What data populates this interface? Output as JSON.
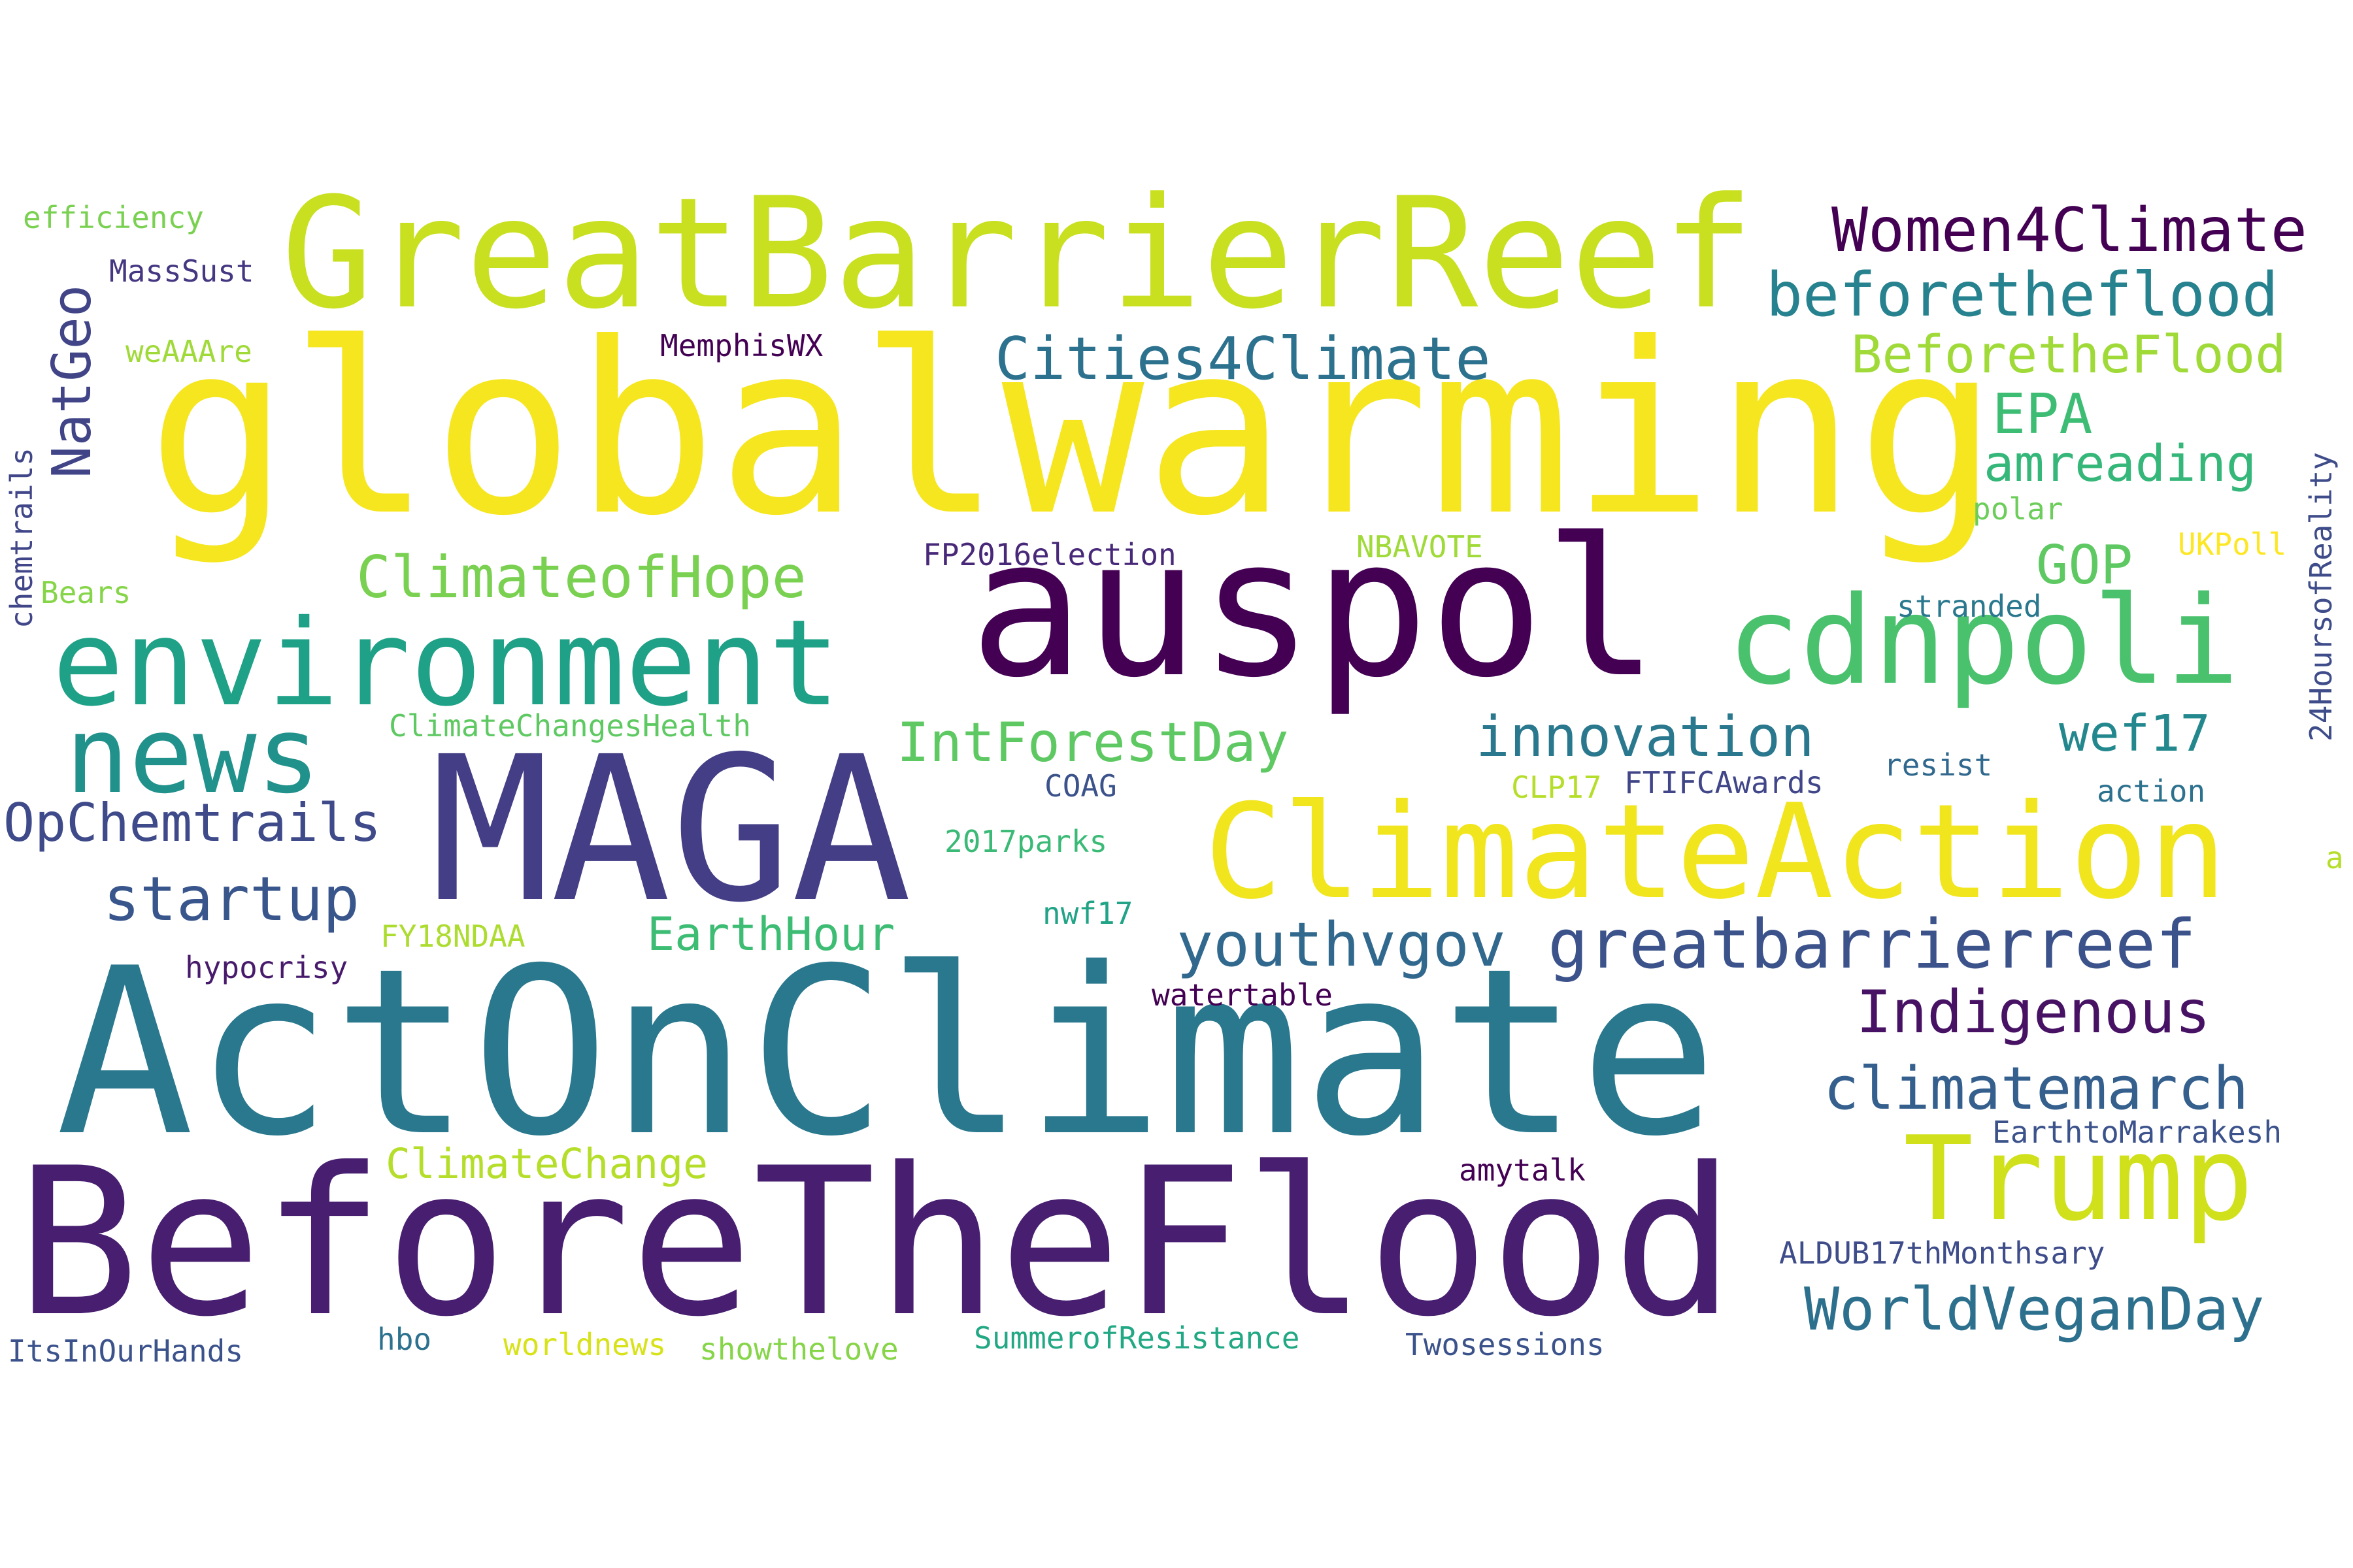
{
  "words": [
    {
      "text": "globalwarming",
      "color": "#f6e620"
    },
    {
      "text": "ActOnClimate",
      "color": "#2a788e"
    },
    {
      "text": "BeforeTheFlood",
      "color": "#481f70"
    },
    {
      "text": "MAGA",
      "color": "#433e85"
    },
    {
      "text": "auspol",
      "color": "#440154"
    },
    {
      "text": "GreatBarrierReef",
      "color": "#c8e020"
    },
    {
      "text": "ClimateAction",
      "color": "#f1e51d"
    },
    {
      "text": "environment",
      "color": "#1fa187"
    },
    {
      "text": "cdnpoli",
      "color": "#4ac16d"
    },
    {
      "text": "news",
      "color": "#21918c"
    },
    {
      "text": "Trump",
      "color": "#d0e11c"
    },
    {
      "text": "greatbarrierreef",
      "color": "#3b528b"
    },
    {
      "text": "Women4Climate",
      "color": "#440154"
    },
    {
      "text": "beforetheflood",
      "color": "#26828e"
    },
    {
      "text": "Cities4Climate",
      "color": "#2c718e"
    },
    {
      "text": "BeforetheFlood",
      "color": "#a0da39"
    },
    {
      "text": "ClimateofHope",
      "color": "#7ad151"
    },
    {
      "text": "IntForestDay",
      "color": "#5ec962"
    },
    {
      "text": "innovation",
      "color": "#2a788e"
    },
    {
      "text": "OpChemtrails",
      "color": "#3e4a89"
    },
    {
      "text": "startup",
      "color": "#39568c"
    },
    {
      "text": "youthvgov",
      "color": "#31688e"
    },
    {
      "text": "Indigenous",
      "color": "#471164"
    },
    {
      "text": "climatemarch",
      "color": "#355f8d"
    },
    {
      "text": "WorldVeganDay",
      "color": "#2d708e"
    },
    {
      "text": "EPA",
      "color": "#3dbc74"
    },
    {
      "text": "amreading",
      "color": "#35b779"
    },
    {
      "text": "GOP",
      "color": "#5ec962"
    },
    {
      "text": "wef17",
      "color": "#23888e"
    },
    {
      "text": "NatGeo",
      "color": "#414487"
    },
    {
      "text": "EarthHour",
      "color": "#3dbc74"
    },
    {
      "text": "ClimateChange",
      "color": "#b5de2b"
    },
    {
      "text": "efficiency",
      "color": "#7ad151"
    },
    {
      "text": "MassSust",
      "color": "#453781"
    },
    {
      "text": "weAAAre",
      "color": "#a0da39"
    },
    {
      "text": "MemphisWX",
      "color": "#440154"
    },
    {
      "text": "chemtrails",
      "color": "#404688"
    },
    {
      "text": "Bears",
      "color": "#86d549"
    },
    {
      "text": "FP2016election",
      "color": "#482878"
    },
    {
      "text": "NBAVOTE",
      "color": "#a0da39"
    },
    {
      "text": "polar",
      "color": "#6ccd5a"
    },
    {
      "text": "UKPoll",
      "color": "#fde725"
    },
    {
      "text": "24HoursofReality",
      "color": "#3e4c8a"
    },
    {
      "text": "stranded",
      "color": "#2a788e"
    },
    {
      "text": "ClimateChangesHealth",
      "color": "#5ec962"
    },
    {
      "text": "COAG",
      "color": "#3b528b"
    },
    {
      "text": "CLP17",
      "color": "#b5de2b"
    },
    {
      "text": "FTIFCAwards",
      "color": "#404688"
    },
    {
      "text": "resist",
      "color": "#31688e"
    },
    {
      "text": "action",
      "color": "#2c718e"
    },
    {
      "text": "2017parks",
      "color": "#3aba76"
    },
    {
      "text": "a",
      "color": "#b5de2b"
    },
    {
      "text": "FY18NDAA",
      "color": "#addc30"
    },
    {
      "text": "nwf17",
      "color": "#20a386"
    },
    {
      "text": "hypocrisy",
      "color": "#481a6c"
    },
    {
      "text": "watertable",
      "color": "#440154"
    },
    {
      "text": "EarthtoMarrakesh",
      "color": "#3b528b"
    },
    {
      "text": "amytalk",
      "color": "#440154"
    },
    {
      "text": "ALDUB17thMonthsary",
      "color": "#3e4c8a"
    },
    {
      "text": "ItsInOurHands",
      "color": "#3b528b"
    },
    {
      "text": "hbo",
      "color": "#2c718e"
    },
    {
      "text": "worldnews",
      "color": "#d8e219"
    },
    {
      "text": "showthelove",
      "color": "#86d549"
    },
    {
      "text": "SummerofResistance",
      "color": "#22a884"
    },
    {
      "text": "Twosessions",
      "color": "#3b528b"
    }
  ]
}
